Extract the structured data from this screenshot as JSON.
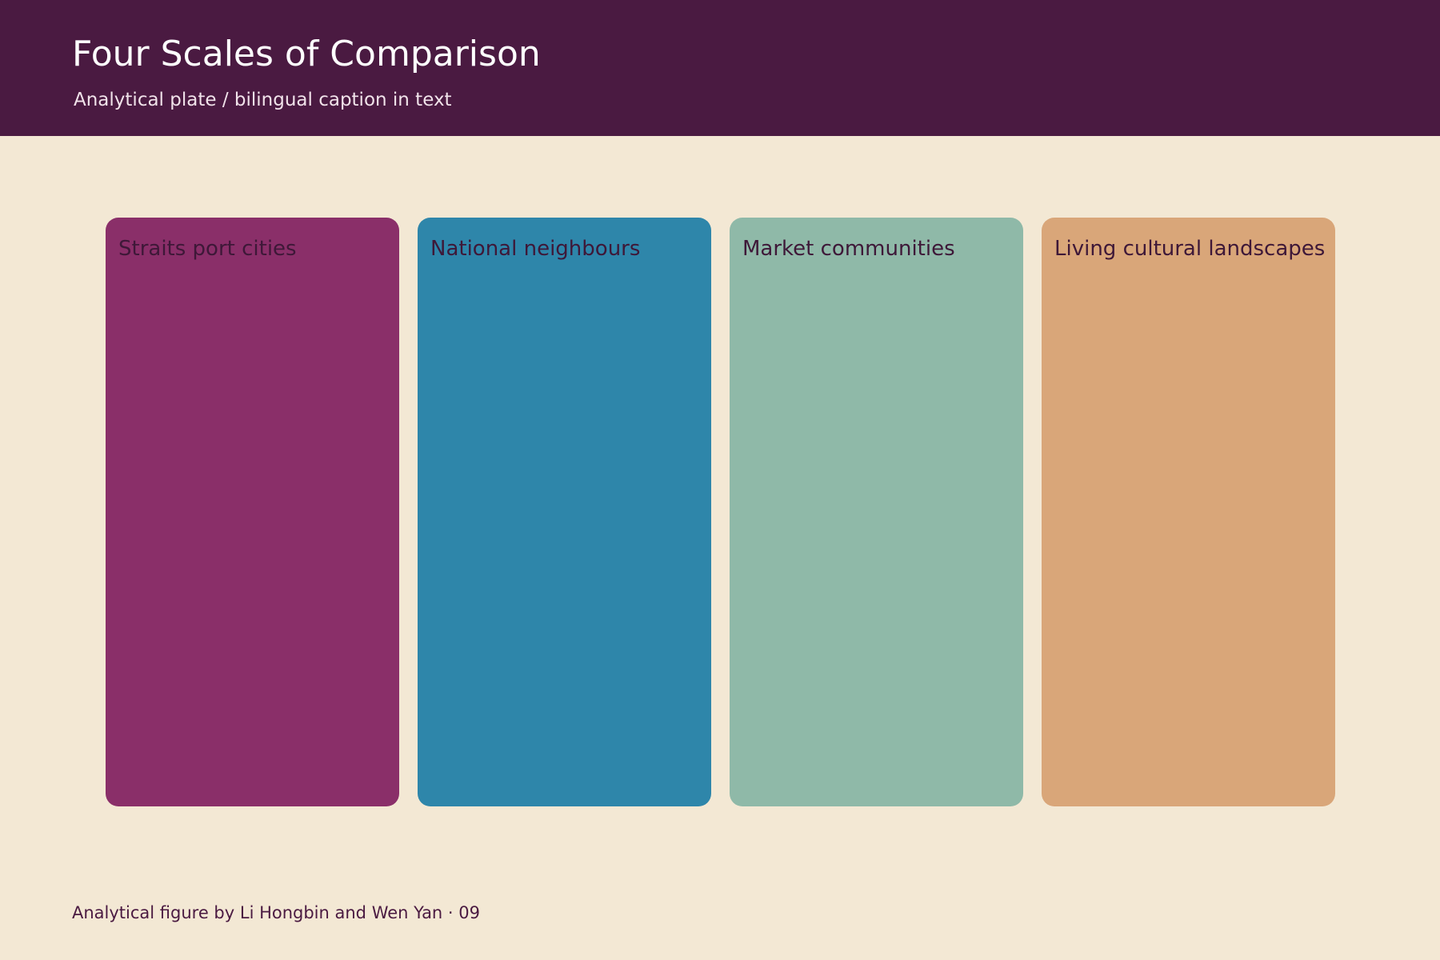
{
  "header": {
    "title": "Four Scales of Comparison",
    "subtitle": "Analytical plate / bilingual caption in text",
    "background": "#4a1a41"
  },
  "cards": [
    {
      "label": "Straits port cities",
      "color": "#8a2f69"
    },
    {
      "label": "National neighbours",
      "color": "#2e86aa"
    },
    {
      "label": "Market communities",
      "color": "#8fb9a8"
    },
    {
      "label": "Living cultural landscapes",
      "color": "#d9a679"
    }
  ],
  "footer": {
    "credit": "Analytical figure by Li Hongbin and Wen Yan · 09"
  },
  "colors": {
    "page_background": "#f3e8d4",
    "label_text": "#3e1838"
  }
}
